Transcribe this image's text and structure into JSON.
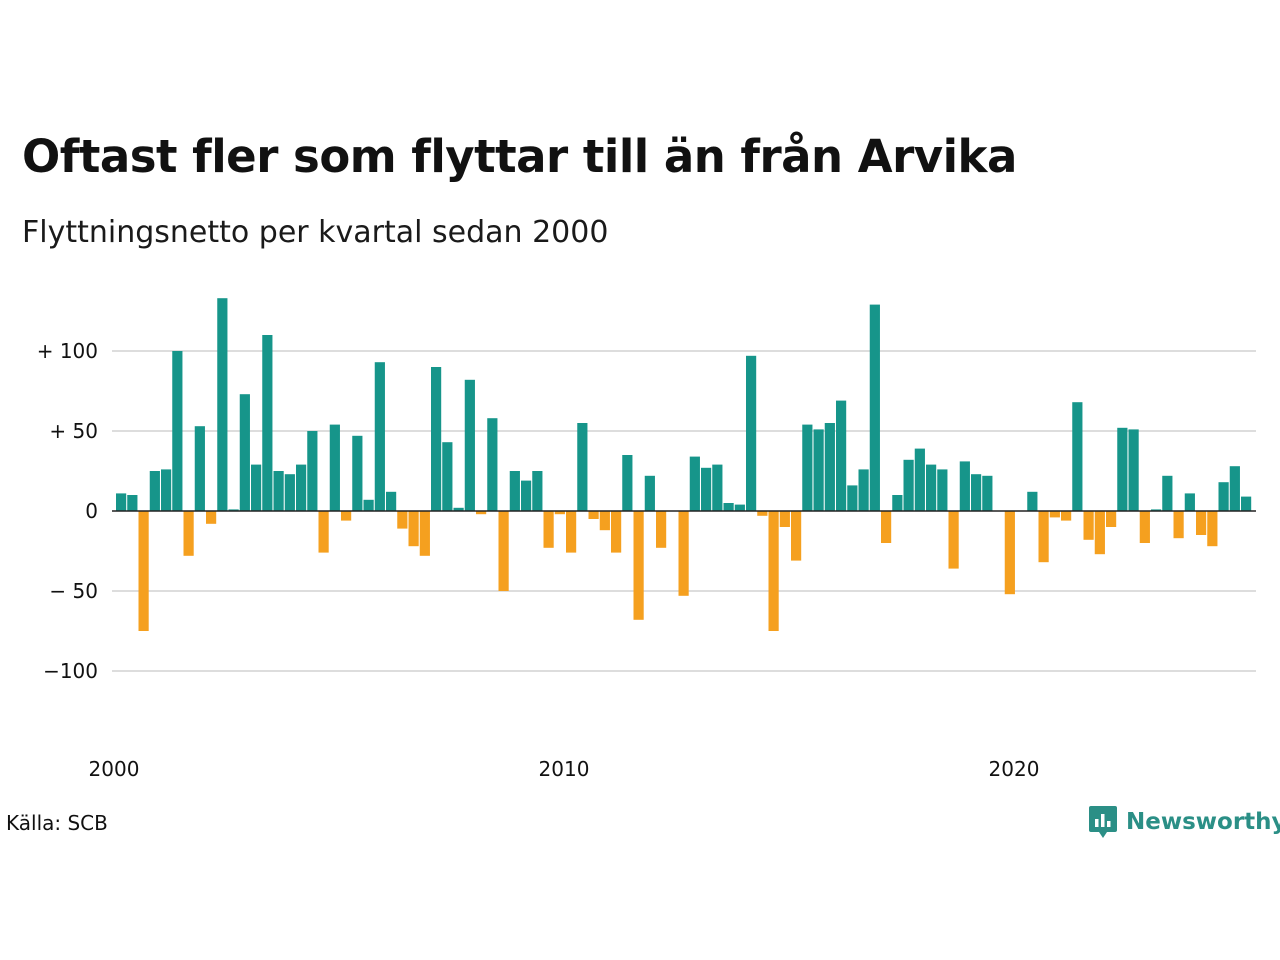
{
  "title": "Oftast fler som flyttar till än från Arvika",
  "subtitle": "Flyttningsnetto per kvartal sedan 2000",
  "source": "Källa: SCB",
  "brand": {
    "name": "Newsworthy",
    "color": "#2b8f86",
    "icon": "newsworthy-logo-icon"
  },
  "colors": {
    "positive": "#16958a",
    "negative": "#f5a01f",
    "grid": "#dddddd",
    "axis": "#222222"
  },
  "chart_data": {
    "type": "bar",
    "title": "Oftast fler som flyttar till än från Arvika",
    "subtitle": "Flyttningsnetto per kvartal sedan 2000",
    "xlabel": "",
    "ylabel": "",
    "x_start": 2000,
    "periods_per_year": 4,
    "ylim": [
      -135,
      140
    ],
    "y_ticks": [
      100,
      50,
      0,
      -50,
      -100
    ],
    "y_tick_labels": [
      "+ 100",
      "+  50",
      "0",
      "− 50",
      "−100"
    ],
    "x_ticks": [
      2000,
      2010,
      2020
    ],
    "x_tick_labels": [
      "2000",
      "2010",
      "2020"
    ],
    "grid": true,
    "legend": "none",
    "values": [
      11,
      10,
      -75,
      25,
      26,
      100,
      -28,
      53,
      -8,
      133,
      1,
      73,
      29,
      110,
      25,
      23,
      29,
      50,
      -26,
      54,
      -6,
      47,
      7,
      93,
      12,
      -11,
      -22,
      -28,
      90,
      43,
      2,
      82,
      -2,
      58,
      -50,
      25,
      19,
      25,
      -23,
      -2,
      -26,
      55,
      -5,
      -12,
      -26,
      35,
      -68,
      22,
      -23,
      0,
      -53,
      34,
      27,
      29,
      5,
      4,
      97,
      -3,
      -75,
      -10,
      -31,
      54,
      51,
      55,
      69,
      16,
      26,
      129,
      -20,
      10,
      32,
      39,
      29,
      26,
      -36,
      31,
      23,
      22,
      0,
      -52,
      0,
      12,
      -32,
      -4,
      -6,
      68,
      -18,
      -27,
      -10,
      52,
      51,
      -20,
      1,
      22,
      -17,
      11,
      -15,
      -22,
      18,
      28,
      9
    ]
  }
}
